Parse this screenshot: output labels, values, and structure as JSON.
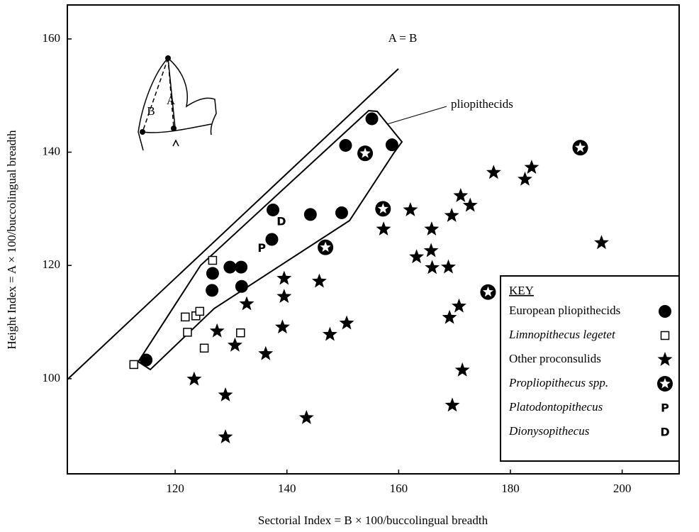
{
  "chart_data": {
    "type": "scatter",
    "x_label": "Sectorial Index = B × 100/buccolingual breadth",
    "y_label": "Height Index = A × 100/buccolingual breadth",
    "xlim": [
      100.7,
      210.2
    ],
    "ylim": [
      83.2,
      166
    ],
    "xticks": [
      120,
      140,
      160,
      180,
      200
    ],
    "yticks": [
      100,
      120,
      140,
      160
    ],
    "annotations": [
      "A = B",
      "pliopithecids",
      "A",
      "B"
    ],
    "legend_title": "KEY",
    "legend_position": "lower right",
    "series": [
      {
        "name": "European pliopithecids",
        "marker": "circle",
        "color": "#000000",
        "style": "normal",
        "x": [
          114.8,
          126.7,
          126.6,
          129.8,
          131.8,
          131.9,
          137.5,
          137.3,
          144.2,
          149.8,
          150.5,
          155.2,
          158.8
        ],
        "y": [
          103.3,
          118.6,
          115.6,
          119.7,
          119.7,
          116.3,
          129.8,
          124.6,
          129.0,
          129.3,
          141.2,
          145.9,
          141.3
        ]
      },
      {
        "name": "Limnopithecus legetet",
        "marker": "square",
        "color": "#000000",
        "style": "italic",
        "x": [
          112.6,
          126.7,
          121.8,
          123.7,
          124.4,
          122.2,
          125.2,
          131.7
        ],
        "y": [
          102.5,
          120.9,
          110.9,
          111.1,
          111.9,
          108.2,
          105.4,
          108.1
        ]
      },
      {
        "name": "Other proconsulids",
        "marker": "star",
        "color": "#000000",
        "style": "normal",
        "x": [
          123.4,
          127.5,
          129.0,
          129.0,
          130.7,
          132.8,
          136.2,
          139.2,
          139.5,
          139.5,
          145.8,
          147.7,
          150.7,
          143.5,
          157.3,
          162.1,
          163.2,
          165.8,
          165.9,
          166.0,
          169.5,
          168.9,
          169.1,
          169.6,
          170.8,
          171.1,
          171.4,
          172.8,
          177.0,
          182.6,
          183.8,
          196.3
        ],
        "y": [
          99.9,
          108.4,
          97.1,
          89.7,
          105.9,
          113.2,
          104.4,
          109.1,
          114.5,
          117.7,
          117.2,
          107.8,
          109.8,
          93.1,
          126.4,
          129.8,
          121.5,
          122.6,
          126.4,
          119.6,
          128.8,
          119.7,
          110.8,
          95.3,
          112.8,
          132.3,
          101.5,
          130.6,
          136.4,
          135.2,
          137.3,
          124.0
        ]
      },
      {
        "name": "Propliopithecus spp.",
        "marker": "star-circle",
        "color": "#000000",
        "style": "italic",
        "x": [
          154.0,
          157.2,
          146.9,
          176.0,
          192.5
        ],
        "y": [
          139.8,
          130.0,
          123.2,
          115.3,
          140.8
        ]
      },
      {
        "name": "Platodontopithecus",
        "marker": "P",
        "color": "#000000",
        "style": "italic",
        "x": [
          135.5
        ],
        "y": [
          123.1
        ]
      },
      {
        "name": "Dionysopithecus",
        "marker": "D",
        "color": "#000000",
        "style": "italic",
        "x": [
          139.0
        ],
        "y": [
          127.8
        ]
      }
    ]
  }
}
